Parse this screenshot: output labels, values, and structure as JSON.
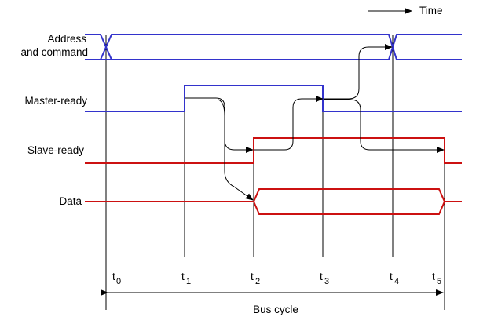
{
  "time_label": "Time",
  "signals": {
    "address": {
      "line1": "Address",
      "line2": "and command"
    },
    "master": "Master-ready",
    "slave": "Slave-ready",
    "data": "Data"
  },
  "ticks": [
    {
      "base": "t",
      "sub": "0"
    },
    {
      "base": "t",
      "sub": "1"
    },
    {
      "base": "t",
      "sub": "2"
    },
    {
      "base": "t",
      "sub": "3"
    },
    {
      "base": "t",
      "sub": "4"
    },
    {
      "base": "t",
      "sub": "5"
    }
  ],
  "bus_cycle_label": "Bus cycle",
  "colors": {
    "address": "#3333cc",
    "master": "#3333cc",
    "slave": "#cc1111",
    "data": "#cc1111",
    "arrows": "#000000"
  }
}
